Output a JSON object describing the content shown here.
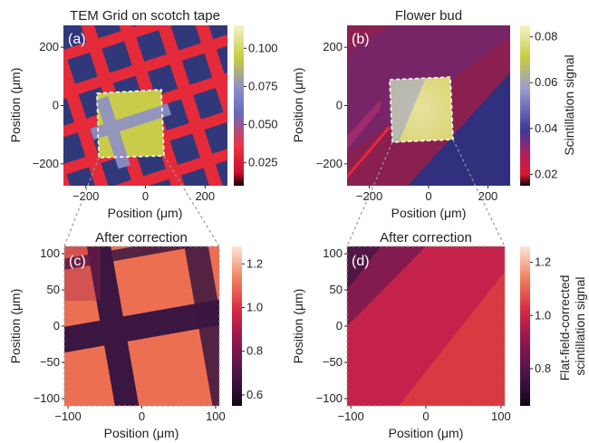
{
  "chart_data": [
    {
      "type": "heatmap",
      "panel": "(a)",
      "title": "TEM Grid on scotch tape",
      "xlabel": "Position (μm)",
      "ylabel": "Position (μm)",
      "xlim": [
        -275,
        275
      ],
      "ylim": [
        -275,
        275
      ],
      "xticks": [
        -200,
        0,
        200
      ],
      "yticks": [
        -200,
        0,
        200
      ],
      "colorbar": {
        "label": "",
        "range": [
          0.01,
          0.115
        ],
        "ticks": [
          0.025,
          0.05,
          0.075,
          0.1
        ],
        "tick_labels": [
          "0.025",
          "0.050",
          "0.075",
          "0.100"
        ]
      }
    },
    {
      "type": "heatmap",
      "panel": "(b)",
      "title": "Flower bud",
      "xlabel": "Position (μm)",
      "ylabel": "Position (μm)",
      "xlim": [
        -275,
        275
      ],
      "ylim": [
        -275,
        275
      ],
      "xticks": [
        -200,
        0,
        200
      ],
      "yticks": [
        -200,
        0,
        200
      ],
      "colorbar": {
        "label": "Scintillation signal",
        "range": [
          0.015,
          0.085
        ],
        "ticks": [
          0.02,
          0.04,
          0.06,
          0.08
        ],
        "tick_labels": [
          "0.02",
          "0.04",
          "0.06",
          "0.08"
        ]
      }
    },
    {
      "type": "heatmap",
      "panel": "(c)",
      "title": "After correction",
      "xlabel": "Position (μm)",
      "ylabel": "Position (μm)",
      "xlim": [
        -105,
        105
      ],
      "ylim": [
        -110,
        110
      ],
      "xticks": [
        -100,
        0,
        100
      ],
      "yticks": [
        -100,
        -50,
        0,
        50,
        100
      ],
      "colorbar": {
        "label": "",
        "range": [
          0.55,
          1.28
        ],
        "ticks": [
          0.6,
          0.8,
          1.0,
          1.2
        ],
        "tick_labels": [
          "0.6",
          "0.8",
          "1.0",
          "1.2"
        ]
      }
    },
    {
      "type": "heatmap",
      "panel": "(d)",
      "title": "After correction",
      "xlabel": "Position (μm)",
      "ylabel": "Position (μm)",
      "xlim": [
        -105,
        105
      ],
      "ylim": [
        -110,
        110
      ],
      "xticks": [
        -100,
        0,
        100
      ],
      "yticks": [
        -100,
        -50,
        0,
        50,
        100
      ],
      "colorbar": {
        "label": "Flat-field-corrected\nscintillation signal",
        "range": [
          0.66,
          1.26
        ],
        "ticks": [
          0.8,
          1.0,
          1.2
        ],
        "tick_labels": [
          "0.8",
          "1.0",
          "1.2"
        ]
      }
    }
  ]
}
